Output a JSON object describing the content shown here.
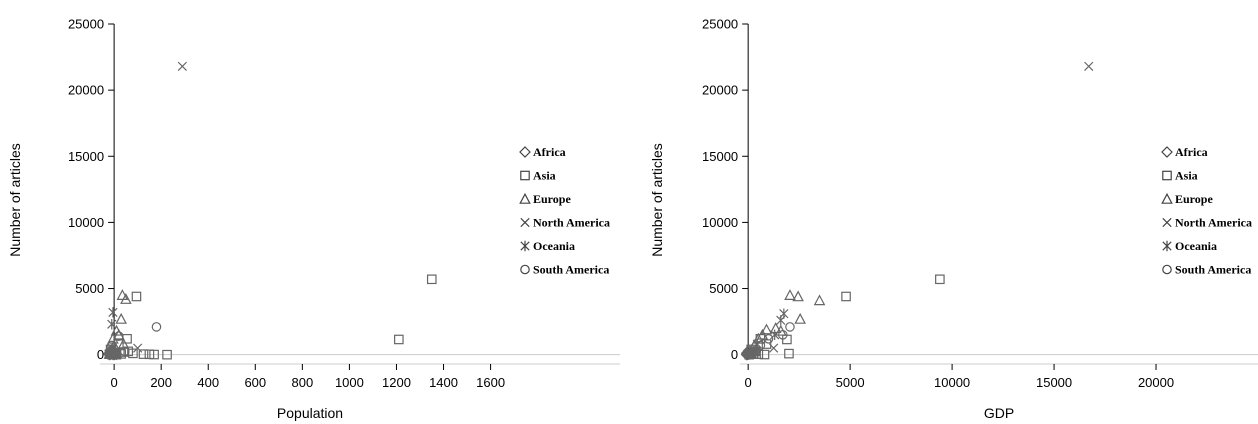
{
  "figure": {
    "chart_data": [
      {
        "type": "scatter",
        "xlabel": "Population",
        "ylabel": "Number of articles",
        "xlim": [
          -60,
          2150
        ],
        "ylim": [
          -100,
          25000
        ],
        "xticks": [
          0,
          200,
          400,
          600,
          800,
          1000,
          1200,
          1400,
          1600
        ],
        "yticks": [
          0,
          5000,
          10000,
          15000,
          20000,
          25000
        ],
        "legend_position": "right",
        "series": [
          {
            "name": "Africa",
            "marker": "diamond",
            "points": [
              [
                -20,
                0
              ],
              [
                -15,
                30
              ],
              [
                -10,
                60
              ],
              [
                -5,
                10
              ],
              [
                -18,
                120
              ],
              [
                -12,
                200
              ],
              [
                5,
                40
              ],
              [
                -8,
                300
              ],
              [
                0,
                0
              ],
              [
                -22,
                80
              ],
              [
                10,
                20
              ]
            ]
          },
          {
            "name": "Asia",
            "marker": "square",
            "points": [
              [
                1350,
                5700
              ],
              [
                1210,
                1150
              ],
              [
                95,
                4400
              ],
              [
                55,
                1200
              ],
              [
                20,
                800
              ],
              [
                60,
                250
              ],
              [
                125,
                40
              ],
              [
                150,
                30
              ],
              [
                225,
                0
              ],
              [
                30,
                60
              ],
              [
                -20,
                40
              ],
              [
                -10,
                100
              ],
              [
                40,
                200
              ],
              [
                80,
                100
              ],
              [
                170,
                10
              ],
              [
                10,
                0
              ],
              [
                -15,
                400
              ]
            ]
          },
          {
            "name": "Europe",
            "marker": "triangle",
            "points": [
              [
                35,
                4500
              ],
              [
                50,
                4200
              ],
              [
                30,
                2700
              ],
              [
                10,
                1800
              ],
              [
                -5,
                1200
              ],
              [
                0,
                700
              ],
              [
                -10,
                400
              ],
              [
                -15,
                300
              ],
              [
                5,
                200
              ],
              [
                10,
                100
              ],
              [
                -20,
                50
              ],
              [
                20,
                1500
              ],
              [
                40,
                800
              ],
              [
                -5,
                0
              ]
            ]
          },
          {
            "name": "North America",
            "marker": "x",
            "points": [
              [
                290,
                21800
              ],
              [
                -10,
                50
              ],
              [
                -5,
                200
              ],
              [
                -15,
                100
              ],
              [
                0,
                30
              ],
              [
                100,
                500
              ],
              [
                -12,
                10
              ]
            ]
          },
          {
            "name": "Oceania",
            "marker": "star",
            "points": [
              [
                -5,
                3200
              ],
              [
                -10,
                2300
              ],
              [
                -15,
                100
              ],
              [
                -20,
                20
              ],
              [
                -8,
                500
              ],
              [
                0,
                10
              ]
            ]
          },
          {
            "name": "South America",
            "marker": "circle",
            "points": [
              [
                180,
                2100
              ],
              [
                20,
                1400
              ],
              [
                -10,
                700
              ],
              [
                -15,
                300
              ],
              [
                45,
                250
              ],
              [
                -5,
                200
              ],
              [
                -20,
                30
              ],
              [
                10,
                10
              ],
              [
                0,
                100
              ]
            ]
          }
        ]
      },
      {
        "type": "scatter",
        "xlabel": "GDP",
        "ylabel": "Number of articles",
        "xlim": [
          -400,
          25000
        ],
        "ylim": [
          -100,
          25000
        ],
        "xticks": [
          0,
          5000,
          10000,
          15000,
          20000
        ],
        "yticks": [
          0,
          5000,
          10000,
          15000,
          20000,
          25000
        ],
        "legend_position": "right",
        "series": [
          {
            "name": "Africa",
            "marker": "diamond",
            "points": [
              [
                -80,
                0
              ],
              [
                -60,
                30
              ],
              [
                -40,
                60
              ],
              [
                -20,
                10
              ],
              [
                -70,
                120
              ],
              [
                0,
                200
              ],
              [
                40,
                40
              ],
              [
                20,
                300
              ],
              [
                -50,
                80
              ]
            ]
          },
          {
            "name": "Asia",
            "marker": "square",
            "points": [
              [
                9400,
                5700
              ],
              [
                4800,
                4400
              ],
              [
                1900,
                1150
              ],
              [
                2000,
                80
              ],
              [
                900,
                800
              ],
              [
                600,
                1200
              ],
              [
                350,
                250
              ],
              [
                500,
                40
              ],
              [
                250,
                60
              ],
              [
                100,
                100
              ],
              [
                50,
                0
              ],
              [
                800,
                10
              ],
              [
                150,
                400
              ]
            ]
          },
          {
            "name": "Europe",
            "marker": "triangle",
            "points": [
              [
                2050,
                4500
              ],
              [
                2450,
                4400
              ],
              [
                3500,
                4100
              ],
              [
                2550,
                2700
              ],
              [
                1350,
                2000
              ],
              [
                1600,
                1800
              ],
              [
                900,
                1900
              ],
              [
                500,
                1200
              ],
              [
                300,
                700
              ],
              [
                200,
                400
              ],
              [
                100,
                200
              ],
              [
                700,
                1500
              ],
              [
                150,
                50
              ]
            ]
          },
          {
            "name": "North America",
            "marker": "x",
            "points": [
              [
                16700,
                21800
              ],
              [
                1250,
                500
              ],
              [
                400,
                200
              ],
              [
                50,
                100
              ],
              [
                200,
                30
              ]
            ]
          },
          {
            "name": "Oceania",
            "marker": "star",
            "points": [
              [
                1600,
                2600
              ],
              [
                1750,
                3100
              ],
              [
                1300,
                1500
              ],
              [
                300,
                100
              ],
              [
                50,
                20
              ],
              [
                450,
                800
              ]
            ]
          },
          {
            "name": "South America",
            "marker": "circle",
            "points": [
              [
                2050,
                2100
              ],
              [
                1700,
                1500
              ],
              [
                1000,
                1200
              ],
              [
                600,
                700
              ],
              [
                400,
                300
              ],
              [
                300,
                200
              ],
              [
                100,
                30
              ],
              [
                200,
                100
              ]
            ]
          }
        ]
      }
    ]
  }
}
